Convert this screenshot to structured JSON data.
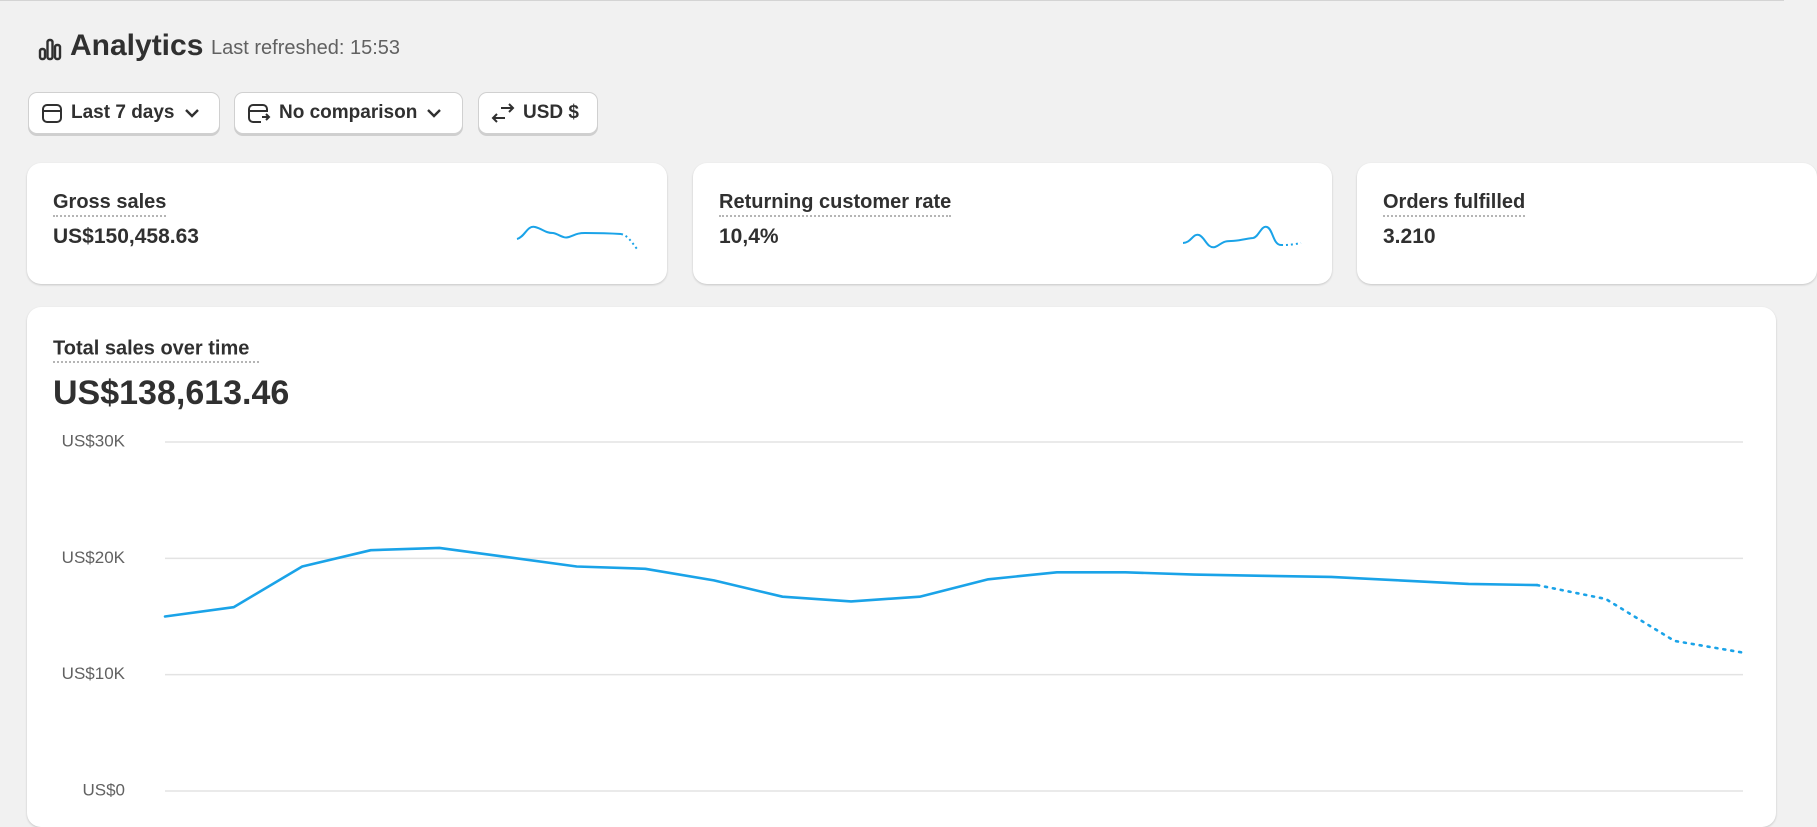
{
  "header": {
    "title": "Analytics",
    "last_refreshed": "Last refreshed: 15:53"
  },
  "filters": [
    "Last 7 days",
    "No comparison",
    "USD $"
  ],
  "cards": [
    {
      "label": "Gross sales",
      "value": "US$150,458.63"
    },
    {
      "label": "Returning customer rate",
      "value": "10,4%"
    },
    {
      "label": "Orders fulfilled",
      "value": "3.210"
    }
  ],
  "chart_data": {
    "type": "line",
    "title": "Total sales over time",
    "subtitle": "US$138,613.46",
    "ylim": [
      0,
      30000
    ],
    "yticks": [
      {
        "value": 0,
        "label": "US$0"
      },
      {
        "value": 10000,
        "label": "US$10K"
      },
      {
        "value": 20000,
        "label": "US$20K"
      },
      {
        "value": 30000,
        "label": "US$30K"
      }
    ],
    "grid": true,
    "series": [
      {
        "color": "#1aa3e8",
        "style": "solid",
        "values": [
          15000,
          15800,
          19300,
          20700,
          20900,
          20100,
          19300,
          19100,
          18100,
          16700,
          16300,
          16700,
          18200,
          18800,
          18800,
          18600,
          18500,
          18400,
          18100,
          17800,
          17700,
          null,
          null,
          null
        ]
      },
      {
        "color": "#1aa3e8",
        "style": "dotted",
        "values": [
          null,
          null,
          null,
          null,
          null,
          null,
          null,
          null,
          null,
          null,
          null,
          null,
          null,
          null,
          null,
          null,
          null,
          null,
          null,
          null,
          17700,
          16500,
          12900,
          11900
        ]
      }
    ]
  }
}
